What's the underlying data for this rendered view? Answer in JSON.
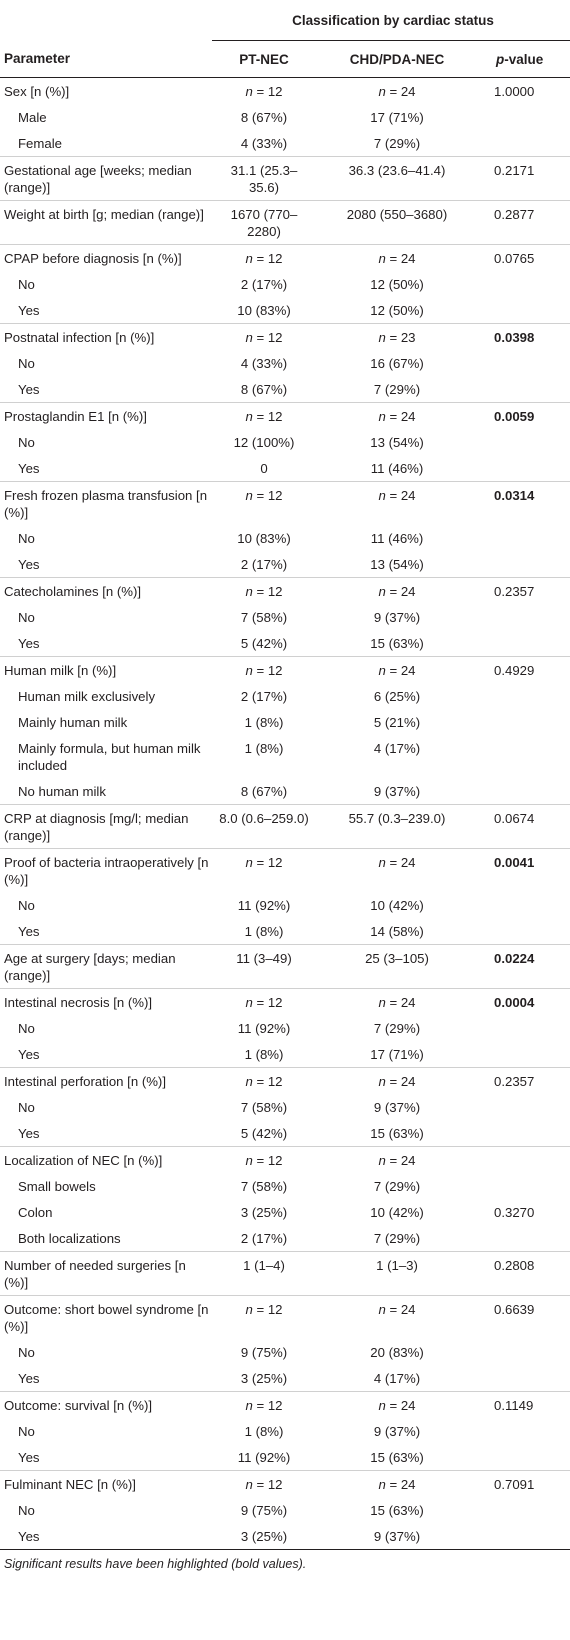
{
  "header": {
    "group_label": "Classification by cardiac status",
    "parameter": "Parameter",
    "col1": "PT-NEC",
    "col2": "CHD/PDA-NEC",
    "pvalue_italic": "p",
    "pvalue_rest": "-value"
  },
  "rows": [
    {
      "kind": "main",
      "label": "Sex [n (%)]",
      "a": "n = 12",
      "b": "n = 24",
      "p": "1.0000",
      "bold": false
    },
    {
      "kind": "sub",
      "label": "Male",
      "a": "8 (67%)",
      "b": "17 (71%)",
      "p": "",
      "bold": false
    },
    {
      "kind": "sub",
      "label": "Female",
      "a": "4 (33%)",
      "b": "7 (29%)",
      "p": "",
      "bold": false
    },
    {
      "kind": "main",
      "label": "Gestational age [weeks; median (range)]",
      "a": "31.1 (25.3–35.6)",
      "b": "36.3 (23.6–41.4)",
      "p": "0.2171",
      "bold": false
    },
    {
      "kind": "main",
      "label": "Weight at birth [g; median (range)]",
      "a": "1670 (770–2280)",
      "b": "2080 (550–3680)",
      "p": "0.2877",
      "bold": false
    },
    {
      "kind": "main",
      "label": "CPAP before diagnosis [n (%)]",
      "a": "n = 12",
      "b": "n = 24",
      "p": "0.0765",
      "bold": false
    },
    {
      "kind": "sub",
      "label": "No",
      "a": "2 (17%)",
      "b": "12 (50%)",
      "p": "",
      "bold": false
    },
    {
      "kind": "sub",
      "label": "Yes",
      "a": "10 (83%)",
      "b": "12 (50%)",
      "p": "",
      "bold": false
    },
    {
      "kind": "main",
      "label": "Postnatal infection [n (%)]",
      "a": "n = 12",
      "b": "n = 23",
      "p": "0.0398",
      "bold": true
    },
    {
      "kind": "sub",
      "label": "No",
      "a": "4 (33%)",
      "b": "16 (67%)",
      "p": "",
      "bold": false
    },
    {
      "kind": "sub",
      "label": "Yes",
      "a": "8 (67%)",
      "b": "7 (29%)",
      "p": "",
      "bold": false
    },
    {
      "kind": "main",
      "label": "Prostaglandin E1 [n (%)]",
      "a": "n = 12",
      "b": "n = 24",
      "p": "0.0059",
      "bold": true
    },
    {
      "kind": "sub",
      "label": "No",
      "a": "12 (100%)",
      "b": "13 (54%)",
      "p": "",
      "bold": false
    },
    {
      "kind": "sub",
      "label": "Yes",
      "a": "0",
      "b": "11 (46%)",
      "p": "",
      "bold": false
    },
    {
      "kind": "main",
      "label": "Fresh frozen plasma transfusion [n (%)]",
      "a": "n = 12",
      "b": "n = 24",
      "p": "0.0314",
      "bold": true
    },
    {
      "kind": "sub",
      "label": "No",
      "a": "10 (83%)",
      "b": "11 (46%)",
      "p": "",
      "bold": false
    },
    {
      "kind": "sub",
      "label": "Yes",
      "a": "2 (17%)",
      "b": "13 (54%)",
      "p": "",
      "bold": false
    },
    {
      "kind": "main",
      "label": "Catecholamines [n (%)]",
      "a": "n = 12",
      "b": "n = 24",
      "p": "0.2357",
      "bold": false
    },
    {
      "kind": "sub",
      "label": "No",
      "a": "7 (58%)",
      "b": "9 (37%)",
      "p": "",
      "bold": false
    },
    {
      "kind": "sub",
      "label": "Yes",
      "a": "5 (42%)",
      "b": "15 (63%)",
      "p": "",
      "bold": false
    },
    {
      "kind": "main",
      "label": "Human milk [n (%)]",
      "a": "n = 12",
      "b": "n = 24",
      "p": "0.4929",
      "bold": false
    },
    {
      "kind": "sub",
      "label": "Human milk exclusively",
      "a": "2 (17%)",
      "b": "6 (25%)",
      "p": "",
      "bold": false
    },
    {
      "kind": "sub",
      "label": "Mainly human milk",
      "a": "1 (8%)",
      "b": "5 (21%)",
      "p": "",
      "bold": false
    },
    {
      "kind": "sub",
      "label": "Mainly formula, but human milk included",
      "a": "1 (8%)",
      "b": "4 (17%)",
      "p": "",
      "bold": false
    },
    {
      "kind": "sub",
      "label": "No human milk",
      "a": "8 (67%)",
      "b": "9 (37%)",
      "p": "",
      "bold": false
    },
    {
      "kind": "main",
      "label": "CRP at diagnosis [mg/l; median (range)]",
      "a": "8.0 (0.6–259.0)",
      "b": "55.7 (0.3–239.0)",
      "p": "0.0674",
      "bold": false
    },
    {
      "kind": "main",
      "label": "Proof of bacteria intraoperatively [n (%)]",
      "a": "n = 12",
      "b": "n = 24",
      "p": "0.0041",
      "bold": true
    },
    {
      "kind": "sub",
      "label": "No",
      "a": "11 (92%)",
      "b": "10 (42%)",
      "p": "",
      "bold": false
    },
    {
      "kind": "sub",
      "label": "Yes",
      "a": "1 (8%)",
      "b": "14 (58%)",
      "p": "",
      "bold": false
    },
    {
      "kind": "main",
      "label": "Age at surgery [days; median (range)]",
      "a": "11 (3–49)",
      "b": "25 (3–105)",
      "p": "0.0224",
      "bold": true
    },
    {
      "kind": "main",
      "label": "Intestinal necrosis [n (%)]",
      "a": "n = 12",
      "b": "n = 24",
      "p": "0.0004",
      "bold": true
    },
    {
      "kind": "sub",
      "label": "No",
      "a": "11 (92%)",
      "b": "7 (29%)",
      "p": "",
      "bold": false
    },
    {
      "kind": "sub",
      "label": "Yes",
      "a": "1 (8%)",
      "b": "17 (71%)",
      "p": "",
      "bold": false
    },
    {
      "kind": "main",
      "label": "Intestinal perforation [n (%)]",
      "a": "n = 12",
      "b": "n = 24",
      "p": "0.2357",
      "bold": false
    },
    {
      "kind": "sub",
      "label": "No",
      "a": "7 (58%)",
      "b": "9 (37%)",
      "p": "",
      "bold": false
    },
    {
      "kind": "sub",
      "label": "Yes",
      "a": "5 (42%)",
      "b": "15 (63%)",
      "p": "",
      "bold": false
    },
    {
      "kind": "main",
      "label": "Localization of NEC [n (%)]",
      "a": "n = 12",
      "b": "n = 24",
      "p": "",
      "bold": false
    },
    {
      "kind": "sub",
      "label": "Small bowels",
      "a": "7 (58%)",
      "b": "7 (29%)",
      "p": "",
      "bold": false
    },
    {
      "kind": "sub",
      "label": "Colon",
      "a": "3 (25%)",
      "b": "10 (42%)",
      "p": "0.3270",
      "bold": false
    },
    {
      "kind": "sub",
      "label": "Both localizations",
      "a": "2 (17%)",
      "b": "7 (29%)",
      "p": "",
      "bold": false
    },
    {
      "kind": "main",
      "label": "Number of needed surgeries [n (%)]",
      "a": "1 (1–4)",
      "b": "1 (1–3)",
      "p": "0.2808",
      "bold": false
    },
    {
      "kind": "main",
      "label": "Outcome: short bowel syndrome [n (%)]",
      "a": "n = 12",
      "b": "n = 24",
      "p": "0.6639",
      "bold": false
    },
    {
      "kind": "sub",
      "label": "No",
      "a": "9 (75%)",
      "b": "20 (83%)",
      "p": "",
      "bold": false
    },
    {
      "kind": "sub",
      "label": "Yes",
      "a": "3 (25%)",
      "b": "4 (17%)",
      "p": "",
      "bold": false
    },
    {
      "kind": "main",
      "label": "Outcome: survival [n (%)]",
      "a": "n = 12",
      "b": "n = 24",
      "p": "0.1149",
      "bold": false
    },
    {
      "kind": "sub",
      "label": "No",
      "a": "1 (8%)",
      "b": "9 (37%)",
      "p": "",
      "bold": false
    },
    {
      "kind": "sub",
      "label": "Yes",
      "a": "11 (92%)",
      "b": "15 (63%)",
      "p": "",
      "bold": false
    },
    {
      "kind": "main",
      "label": "Fulminant NEC [n (%)]",
      "a": "n = 12",
      "b": "n = 24",
      "p": "0.7091",
      "bold": false
    },
    {
      "kind": "sub",
      "label": "No",
      "a": "9 (75%)",
      "b": "15 (63%)",
      "p": "",
      "bold": false
    },
    {
      "kind": "sub",
      "label": "Yes",
      "a": "3 (25%)",
      "b": "9 (37%)",
      "p": "",
      "bold": false
    }
  ],
  "footnote": "Significant results have been highlighted (bold values)."
}
